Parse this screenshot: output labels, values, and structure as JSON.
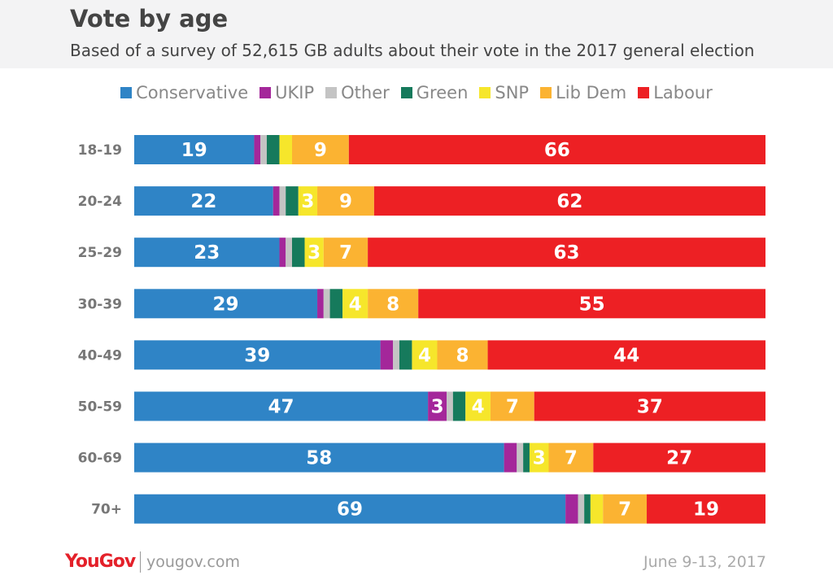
{
  "chart_data": {
    "type": "bar",
    "orientation": "horizontal",
    "stacked": true,
    "title": "Vote by age",
    "subtitle": "Based of a survey of 52,615 GB adults about their vote in the 2017 general election",
    "categories": [
      "18-19",
      "20-24",
      "25-29",
      "30-39",
      "40-49",
      "50-59",
      "60-69",
      "70+"
    ],
    "series": [
      {
        "name": "Conservative",
        "color": "#2f84c6",
        "values": [
          19,
          22,
          23,
          29,
          39,
          47,
          58,
          69
        ]
      },
      {
        "name": "UKIP",
        "color": "#a4279a",
        "values": [
          1,
          1,
          1,
          1,
          2,
          3,
          2,
          2
        ]
      },
      {
        "name": "Other",
        "color": "#c4c4c4",
        "values": [
          1,
          1,
          1,
          1,
          1,
          1,
          1,
          1
        ]
      },
      {
        "name": "Green",
        "color": "#167a5c",
        "values": [
          2,
          2,
          2,
          2,
          2,
          2,
          1,
          1
        ]
      },
      {
        "name": "SNP",
        "color": "#f6e62b",
        "values": [
          2,
          3,
          3,
          4,
          4,
          4,
          3,
          2
        ]
      },
      {
        "name": "Lib Dem",
        "color": "#fbb332",
        "values": [
          9,
          9,
          7,
          8,
          8,
          7,
          7,
          7
        ]
      },
      {
        "name": "Labour",
        "color": "#ed2024",
        "values": [
          66,
          62,
          63,
          55,
          44,
          37,
          27,
          19
        ]
      }
    ],
    "legend": "top",
    "grid": false,
    "unit": "%"
  },
  "footer": {
    "brand": "YouGov",
    "url": "yougov.com",
    "date": "June 9-13, 2017"
  }
}
